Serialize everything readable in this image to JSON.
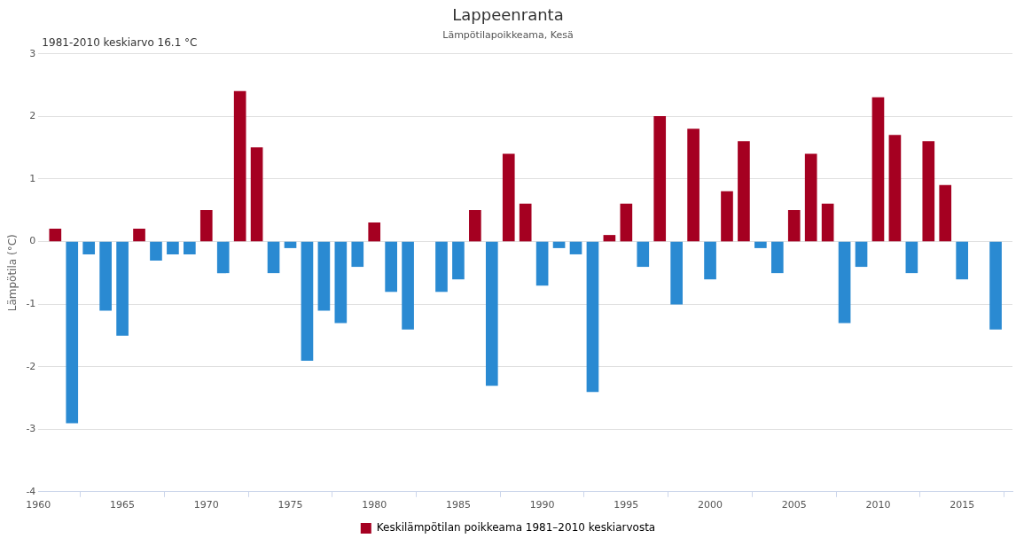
{
  "chart_data": {
    "type": "bar",
    "title": "Lappeenranta",
    "subtitle": "Lämpötilapoikkeama, Kesä",
    "ylabel": "Lämpötila (°C)",
    "annotations": [
      "1981-2010 keskiarvo 16.1 °C"
    ],
    "x": [
      1961,
      1962,
      1963,
      1964,
      1965,
      1966,
      1967,
      1968,
      1969,
      1970,
      1971,
      1972,
      1973,
      1974,
      1975,
      1976,
      1977,
      1978,
      1979,
      1980,
      1981,
      1982,
      1983,
      1984,
      1985,
      1986,
      1987,
      1988,
      1989,
      1990,
      1991,
      1992,
      1993,
      1994,
      1995,
      1996,
      1997,
      1998,
      1999,
      2000,
      2001,
      2002,
      2003,
      2004,
      2005,
      2006,
      2007,
      2008,
      2009,
      2010,
      2011,
      2012,
      2013,
      2014,
      2015,
      2016,
      2017
    ],
    "series": [
      {
        "name": "Keskilämpötilan poikkeama 1981–2010 keskiarvosta",
        "color": "#a50021",
        "colors": [
          "#a50021",
          "#2a8ad2",
          "#2a8ad2",
          "#2a8ad2",
          "#2a8ad2",
          "#a50021",
          "#2a8ad2",
          "#2a8ad2",
          "#2a8ad2",
          "#a50021",
          "#2a8ad2",
          "#a50021",
          "#a50021",
          "#2a8ad2",
          "#2a8ad2",
          "#2a8ad2",
          "#2a8ad2",
          "#2a8ad2",
          "#2a8ad2",
          "#a50021",
          "#2a8ad2",
          "#2a8ad2",
          "#2a8ad2",
          "#2a8ad2",
          "#2a8ad2",
          "#a50021",
          "#2a8ad2",
          "#a50021",
          "#a50021",
          "#2a8ad2",
          "#2a8ad2",
          "#2a8ad2",
          "#2a8ad2",
          "#a50021",
          "#a50021",
          "#2a8ad2",
          "#a50021",
          "#2a8ad2",
          "#a50021",
          "#2a8ad2",
          "#a50021",
          "#a50021",
          "#2a8ad2",
          "#2a8ad2",
          "#a50021",
          "#a50021",
          "#a50021",
          "#2a8ad2",
          "#2a8ad2",
          "#a50021",
          "#a50021",
          "#2a8ad2",
          "#a50021",
          "#a50021",
          "#2a8ad2",
          "#2a8ad2",
          "#2a8ad2"
        ],
        "values": [
          0.2,
          -2.9,
          -0.2,
          -1.1,
          -1.5,
          0.2,
          -0.3,
          -0.2,
          -0.2,
          0.5,
          -0.5,
          2.4,
          1.5,
          -0.5,
          -0.1,
          -1.9,
          -1.1,
          -1.3,
          -0.4,
          0.3,
          -0.8,
          -1.4,
          null,
          -0.8,
          -0.6,
          0.5,
          -2.3,
          1.4,
          0.6,
          -0.7,
          -0.1,
          -0.2,
          -2.4,
          0.1,
          0.6,
          -0.4,
          2.0,
          -1.0,
          1.8,
          -0.6,
          0.8,
          1.6,
          -0.1,
          -0.5,
          0.5,
          1.4,
          0.6,
          -1.3,
          -0.4,
          2.3,
          1.7,
          -0.5,
          1.6,
          0.9,
          -0.6,
          null,
          -1.4
        ]
      }
    ],
    "xlim": [
      1960,
      2018
    ],
    "xticks": [
      1960,
      1965,
      1970,
      1975,
      1980,
      1985,
      1990,
      1995,
      2000,
      2005,
      2010,
      2015
    ],
    "ylim": [
      -4,
      3
    ],
    "yticks": [
      -4,
      -3,
      -2,
      -1,
      0,
      1,
      2,
      3
    ],
    "grid": "y",
    "legend": "bottom"
  }
}
